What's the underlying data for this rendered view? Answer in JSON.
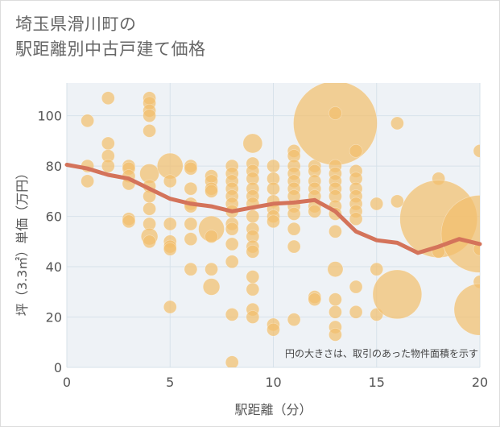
{
  "title": {
    "line1": "埼玉県滑川町の",
    "line2": "駅距離別中古戸建て価格"
  },
  "colors": {
    "bubble": "#f3bf6e",
    "line": "#d4735a",
    "grid": "#d7e2ea",
    "plot_bg": "#eef2f6"
  },
  "chart_data": {
    "type": "scatter",
    "xlabel": "駅距離（分）",
    "ylabel": "坪（3.3㎡）単価（万円）",
    "xlim": [
      0,
      20
    ],
    "ylim": [
      0,
      113
    ],
    "x_ticks": [
      0,
      5,
      10,
      15,
      20
    ],
    "y_ticks": [
      0,
      20,
      40,
      60,
      80,
      100
    ],
    "grid": true,
    "annotation": "円の大きさは、取引のあった物件面積を示す",
    "points": [
      {
        "x": 1,
        "y": 98,
        "s": 1
      },
      {
        "x": 1,
        "y": 80,
        "s": 1
      },
      {
        "x": 1,
        "y": 74,
        "s": 1
      },
      {
        "x": 2,
        "y": 107,
        "s": 1
      },
      {
        "x": 2,
        "y": 89,
        "s": 1
      },
      {
        "x": 2,
        "y": 84,
        "s": 1
      },
      {
        "x": 2,
        "y": 80,
        "s": 1
      },
      {
        "x": 3,
        "y": 80,
        "s": 1
      },
      {
        "x": 3,
        "y": 79,
        "s": 1
      },
      {
        "x": 3,
        "y": 76,
        "s": 1
      },
      {
        "x": 3,
        "y": 73,
        "s": 1
      },
      {
        "x": 3,
        "y": 59,
        "s": 1
      },
      {
        "x": 3,
        "y": 58,
        "s": 1
      },
      {
        "x": 4,
        "y": 107,
        "s": 1
      },
      {
        "x": 4,
        "y": 105,
        "s": 1
      },
      {
        "x": 4,
        "y": 102,
        "s": 1
      },
      {
        "x": 4,
        "y": 100,
        "s": 1
      },
      {
        "x": 4,
        "y": 94,
        "s": 1
      },
      {
        "x": 4,
        "y": 77,
        "s": 1.5
      },
      {
        "x": 4,
        "y": 72,
        "s": 1
      },
      {
        "x": 4,
        "y": 68,
        "s": 1
      },
      {
        "x": 4,
        "y": 63,
        "s": 1
      },
      {
        "x": 4,
        "y": 57,
        "s": 1
      },
      {
        "x": 4,
        "y": 52,
        "s": 1.3
      },
      {
        "x": 4,
        "y": 50,
        "s": 1
      },
      {
        "x": 5,
        "y": 80,
        "s": 2
      },
      {
        "x": 5,
        "y": 74,
        "s": 1
      },
      {
        "x": 5,
        "y": 57,
        "s": 1
      },
      {
        "x": 5,
        "y": 50,
        "s": 1
      },
      {
        "x": 5,
        "y": 48,
        "s": 1
      },
      {
        "x": 5,
        "y": 47,
        "s": 1
      },
      {
        "x": 5,
        "y": 24,
        "s": 1
      },
      {
        "x": 6,
        "y": 80,
        "s": 1
      },
      {
        "x": 6,
        "y": 79,
        "s": 1
      },
      {
        "x": 6,
        "y": 71,
        "s": 1
      },
      {
        "x": 6,
        "y": 65,
        "s": 1
      },
      {
        "x": 6,
        "y": 64,
        "s": 1
      },
      {
        "x": 6,
        "y": 57,
        "s": 1
      },
      {
        "x": 6,
        "y": 51,
        "s": 1
      },
      {
        "x": 6,
        "y": 39,
        "s": 1
      },
      {
        "x": 7,
        "y": 76,
        "s": 1
      },
      {
        "x": 7,
        "y": 74,
        "s": 1
      },
      {
        "x": 7,
        "y": 71,
        "s": 1
      },
      {
        "x": 7,
        "y": 70,
        "s": 1
      },
      {
        "x": 7,
        "y": 55,
        "s": 2
      },
      {
        "x": 7,
        "y": 52,
        "s": 1
      },
      {
        "x": 7,
        "y": 39,
        "s": 1
      },
      {
        "x": 7,
        "y": 32,
        "s": 1.3
      },
      {
        "x": 8,
        "y": 80,
        "s": 1
      },
      {
        "x": 8,
        "y": 77,
        "s": 1
      },
      {
        "x": 8,
        "y": 74,
        "s": 1
      },
      {
        "x": 8,
        "y": 71,
        "s": 1
      },
      {
        "x": 8,
        "y": 68,
        "s": 1
      },
      {
        "x": 8,
        "y": 65,
        "s": 1
      },
      {
        "x": 8,
        "y": 62,
        "s": 1
      },
      {
        "x": 8,
        "y": 57,
        "s": 1
      },
      {
        "x": 8,
        "y": 55,
        "s": 1
      },
      {
        "x": 8,
        "y": 49,
        "s": 1
      },
      {
        "x": 8,
        "y": 42,
        "s": 1
      },
      {
        "x": 8,
        "y": 21,
        "s": 1
      },
      {
        "x": 8,
        "y": 2,
        "s": 1
      },
      {
        "x": 9,
        "y": 89,
        "s": 1.5
      },
      {
        "x": 9,
        "y": 81,
        "s": 1
      },
      {
        "x": 9,
        "y": 78,
        "s": 1
      },
      {
        "x": 9,
        "y": 75,
        "s": 1
      },
      {
        "x": 9,
        "y": 71,
        "s": 1
      },
      {
        "x": 9,
        "y": 68,
        "s": 1
      },
      {
        "x": 9,
        "y": 65,
        "s": 1
      },
      {
        "x": 9,
        "y": 60,
        "s": 1
      },
      {
        "x": 9,
        "y": 55,
        "s": 1
      },
      {
        "x": 9,
        "y": 52,
        "s": 1
      },
      {
        "x": 9,
        "y": 48,
        "s": 1
      },
      {
        "x": 9,
        "y": 46,
        "s": 1
      },
      {
        "x": 9,
        "y": 36,
        "s": 1
      },
      {
        "x": 9,
        "y": 31,
        "s": 1
      },
      {
        "x": 9,
        "y": 23,
        "s": 1
      },
      {
        "x": 9,
        "y": 20,
        "s": 1
      },
      {
        "x": 10,
        "y": 80,
        "s": 1
      },
      {
        "x": 10,
        "y": 75,
        "s": 1
      },
      {
        "x": 10,
        "y": 71,
        "s": 1
      },
      {
        "x": 10,
        "y": 66,
        "s": 1
      },
      {
        "x": 10,
        "y": 63,
        "s": 1
      },
      {
        "x": 10,
        "y": 60,
        "s": 1
      },
      {
        "x": 10,
        "y": 58,
        "s": 1
      },
      {
        "x": 10,
        "y": 17,
        "s": 1
      },
      {
        "x": 10,
        "y": 15,
        "s": 1
      },
      {
        "x": 11,
        "y": 86,
        "s": 1
      },
      {
        "x": 11,
        "y": 84,
        "s": 1
      },
      {
        "x": 11,
        "y": 80,
        "s": 1
      },
      {
        "x": 11,
        "y": 77,
        "s": 1
      },
      {
        "x": 11,
        "y": 74,
        "s": 1
      },
      {
        "x": 11,
        "y": 71,
        "s": 1
      },
      {
        "x": 11,
        "y": 68,
        "s": 1
      },
      {
        "x": 11,
        "y": 64,
        "s": 1
      },
      {
        "x": 11,
        "y": 61,
        "s": 1
      },
      {
        "x": 11,
        "y": 55,
        "s": 1
      },
      {
        "x": 11,
        "y": 48,
        "s": 1
      },
      {
        "x": 11,
        "y": 19,
        "s": 1
      },
      {
        "x": 12,
        "y": 80,
        "s": 1
      },
      {
        "x": 12,
        "y": 78,
        "s": 1
      },
      {
        "x": 12,
        "y": 74,
        "s": 1
      },
      {
        "x": 12,
        "y": 71,
        "s": 1
      },
      {
        "x": 12,
        "y": 68,
        "s": 1
      },
      {
        "x": 12,
        "y": 64,
        "s": 1
      },
      {
        "x": 12,
        "y": 62,
        "s": 1
      },
      {
        "x": 12,
        "y": 28,
        "s": 1
      },
      {
        "x": 12,
        "y": 27,
        "s": 1
      },
      {
        "x": 13,
        "y": 97,
        "s": 6.5
      },
      {
        "x": 13,
        "y": 101,
        "s": 1
      },
      {
        "x": 13,
        "y": 80,
        "s": 1
      },
      {
        "x": 13,
        "y": 77,
        "s": 1
      },
      {
        "x": 13,
        "y": 74,
        "s": 1
      },
      {
        "x": 13,
        "y": 71,
        "s": 1
      },
      {
        "x": 13,
        "y": 68,
        "s": 1
      },
      {
        "x": 13,
        "y": 64,
        "s": 1
      },
      {
        "x": 13,
        "y": 61,
        "s": 1
      },
      {
        "x": 13,
        "y": 54,
        "s": 1
      },
      {
        "x": 13,
        "y": 39,
        "s": 1.2
      },
      {
        "x": 13,
        "y": 27,
        "s": 1
      },
      {
        "x": 13,
        "y": 22,
        "s": 1
      },
      {
        "x": 13,
        "y": 16,
        "s": 1
      },
      {
        "x": 13,
        "y": 13,
        "s": 1
      },
      {
        "x": 14,
        "y": 86,
        "s": 1
      },
      {
        "x": 14,
        "y": 78,
        "s": 1
      },
      {
        "x": 14,
        "y": 75,
        "s": 1
      },
      {
        "x": 14,
        "y": 71,
        "s": 1
      },
      {
        "x": 14,
        "y": 68,
        "s": 1
      },
      {
        "x": 14,
        "y": 65,
        "s": 1
      },
      {
        "x": 14,
        "y": 62,
        "s": 1
      },
      {
        "x": 14,
        "y": 59,
        "s": 1
      },
      {
        "x": 14,
        "y": 32,
        "s": 1
      },
      {
        "x": 14,
        "y": 22,
        "s": 1
      },
      {
        "x": 15,
        "y": 65,
        "s": 1
      },
      {
        "x": 15,
        "y": 39,
        "s": 1
      },
      {
        "x": 15,
        "y": 21,
        "s": 1
      },
      {
        "x": 16,
        "y": 97,
        "s": 1
      },
      {
        "x": 16,
        "y": 66,
        "s": 1
      },
      {
        "x": 16,
        "y": 29,
        "s": 3.8
      },
      {
        "x": 18,
        "y": 75,
        "s": 1
      },
      {
        "x": 18,
        "y": 59,
        "s": 6
      },
      {
        "x": 18,
        "y": 46,
        "s": 1
      },
      {
        "x": 20,
        "y": 86,
        "s": 1
      },
      {
        "x": 20,
        "y": 53,
        "s": 6
      },
      {
        "x": 20,
        "y": 47,
        "s": 1
      },
      {
        "x": 20,
        "y": 34,
        "s": 1
      },
      {
        "x": 20,
        "y": 23,
        "s": 4
      }
    ],
    "trend": {
      "x": [
        0,
        1,
        2,
        3,
        4,
        5,
        6,
        7,
        8,
        9,
        10,
        11,
        12,
        13,
        14,
        15,
        16,
        17,
        18,
        19,
        20
      ],
      "y": [
        80.5,
        79,
        76.5,
        75,
        71,
        67,
        65,
        64,
        62,
        63.5,
        65,
        65.5,
        66.5,
        62,
        54,
        50.5,
        49.5,
        45.5,
        48,
        51,
        49
      ]
    }
  }
}
